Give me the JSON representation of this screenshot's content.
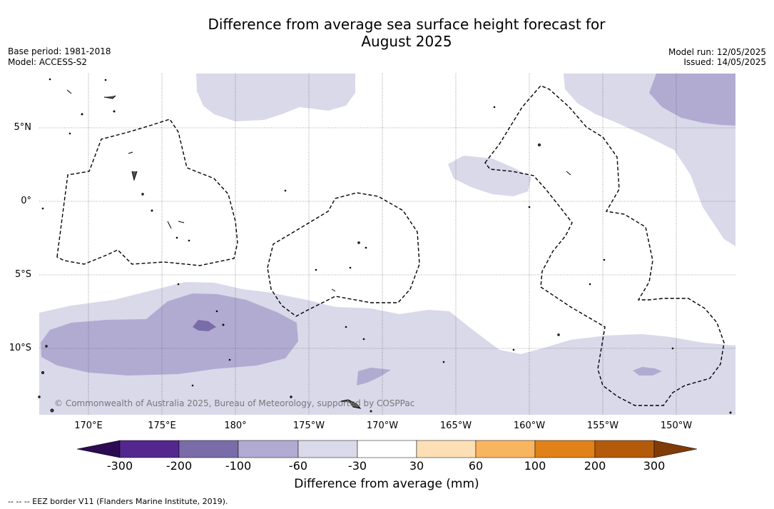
{
  "title_line1": "Difference from average sea surface height forecast for",
  "title_line2": "August 2025",
  "base_period": "Base period: 1981-2018",
  "model": "Model: ACCESS-S2",
  "model_run": "Model run: 12/05/2025",
  "issued": "Issued: 14/05/2025",
  "copyright": "© Commonwealth of Australia 2025, Bureau of Meteorology, supported by COSPPac",
  "lat_labels": [
    "5°N",
    "0°",
    "5°S",
    "10°S"
  ],
  "lon_labels": [
    "170°E",
    "175°E",
    "180°",
    "175°W",
    "170°W",
    "165°W",
    "160°W",
    "155°W",
    "150°W"
  ],
  "colorbar": {
    "title": "Difference from average (mm)",
    "tick_labels": [
      "-300",
      "-200",
      "-100",
      "-60",
      "-30",
      "30",
      "60",
      "100",
      "200",
      "300"
    ],
    "colors": [
      "#2d0b52",
      "#54278f",
      "#7a6ca9",
      "#b1abd2",
      "#d9d9ea",
      "#ffffff",
      "#fddfb5",
      "#f8b560",
      "#e08119",
      "#b35b0b",
      "#7f3b08"
    ]
  },
  "footnote": "--  --  -- EEZ border V11 (Flanders Marine Institute, 2019)."
}
